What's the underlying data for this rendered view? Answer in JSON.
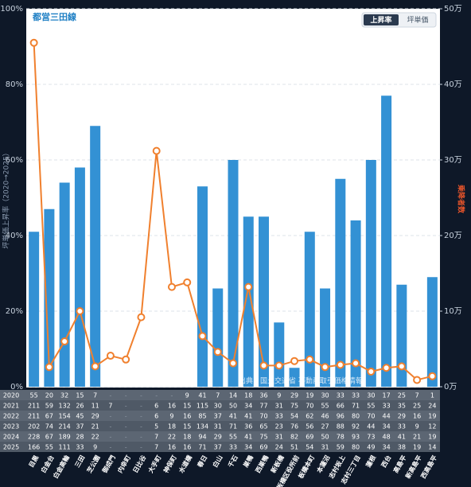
{
  "chart_data": {
    "type": "bar",
    "title": "都営三田線",
    "toggles": [
      "上昇率",
      "坪単価"
    ],
    "y_label": "坪単価上昇率（2020→2025）",
    "y2_label": "乗降者数",
    "annotation": "出典：国土交通省 不動産取引価格情報",
    "categories": [
      "目黒",
      "白金台",
      "白金高輪",
      "三田",
      "芝公園",
      "御成門",
      "内幸町",
      "日比谷",
      "大手町",
      "神保町",
      "水道橋",
      "春日",
      "白山",
      "千石",
      "巣鴨",
      "西巣鴨",
      "新板橋",
      "板橋区役所前",
      "板橋本町",
      "本蓮沼",
      "志村坂上",
      "志村三丁目",
      "蓮根",
      "西台",
      "高島平",
      "新高島平",
      "西高島平"
    ],
    "series": [
      {
        "type": "bar",
        "color": "#3391d4",
        "values": [
          41,
          47,
          54,
          58,
          69,
          null,
          null,
          null,
          null,
          null,
          null,
          53,
          26,
          60,
          45,
          45,
          17,
          5,
          41,
          26,
          55,
          44,
          60,
          77,
          27,
          null,
          29
        ]
      },
      {
        "type": "line",
        "axis": "y2",
        "color": "#f0802e",
        "values": [
          45.5,
          2.6,
          6.0,
          10.0,
          2.7,
          4.1,
          3.6,
          9.2,
          31.2,
          13.2,
          13.8,
          6.7,
          4.6,
          3.1,
          13.2,
          2.8,
          2.8,
          3.4,
          3.6,
          2.6,
          2.9,
          3.1,
          2.0,
          2.5,
          2.7,
          0.9,
          1.4
        ]
      }
    ],
    "ylim": [
      0,
      100
    ],
    "yticks": [
      {
        "value": 0,
        "label": "0%"
      },
      {
        "value": 20,
        "label": "20%"
      },
      {
        "value": 40,
        "label": "40%"
      },
      {
        "value": 60,
        "label": "60%"
      },
      {
        "value": 80,
        "label": "80%"
      },
      {
        "value": 100,
        "label": "100%"
      }
    ],
    "y2lim": [
      0,
      50
    ],
    "y2ticks": [
      {
        "value": 0,
        "label": "0万"
      },
      {
        "value": 10,
        "label": "10万"
      },
      {
        "value": 20,
        "label": "20万"
      },
      {
        "value": 30,
        "label": "30万"
      },
      {
        "value": 40,
        "label": "40万"
      },
      {
        "value": 50,
        "label": "50万"
      }
    ],
    "grid": true,
    "table": {
      "rows": [
        {
          "year": "2020",
          "cells": [
            55,
            20,
            32,
            15,
            7,
            "-",
            "-",
            "-",
            "-",
            "-",
            9,
            41,
            7,
            14,
            18,
            36,
            9,
            29,
            19,
            30,
            33,
            33,
            30,
            17,
            25,
            7,
            1
          ]
        },
        {
          "year": "2021",
          "cells": [
            211,
            59,
            132,
            26,
            11,
            7,
            "-",
            "-",
            6,
            16,
            15,
            115,
            30,
            50,
            34,
            77,
            31,
            75,
            70,
            55,
            66,
            71,
            55,
            33,
            35,
            25,
            24
          ]
        },
        {
          "year": "2022",
          "cells": [
            211,
            67,
            154,
            45,
            29,
            "-",
            "-",
            "-",
            6,
            9,
            16,
            85,
            37,
            41,
            41,
            70,
            33,
            54,
            62,
            46,
            96,
            80,
            70,
            44,
            29,
            16,
            19
          ]
        },
        {
          "year": "2023",
          "cells": [
            202,
            74,
            214,
            37,
            21,
            "-",
            "-",
            "-",
            5,
            18,
            15,
            134,
            31,
            71,
            36,
            65,
            23,
            76,
            56,
            27,
            88,
            92,
            44,
            34,
            33,
            9,
            12
          ]
        },
        {
          "year": "2024",
          "cells": [
            228,
            67,
            189,
            28,
            22,
            "-",
            "-",
            "-",
            7,
            22,
            18,
            94,
            29,
            55,
            41,
            75,
            31,
            82,
            69,
            50,
            78,
            93,
            73,
            48,
            41,
            21,
            19
          ]
        },
        {
          "year": "2025",
          "cells": [
            166,
            55,
            111,
            33,
            9,
            "-",
            "-",
            "-",
            7,
            16,
            16,
            71,
            37,
            33,
            34,
            69,
            24,
            51,
            54,
            31,
            59,
            80,
            49,
            34,
            38,
            19,
            14
          ]
        }
      ]
    }
  }
}
